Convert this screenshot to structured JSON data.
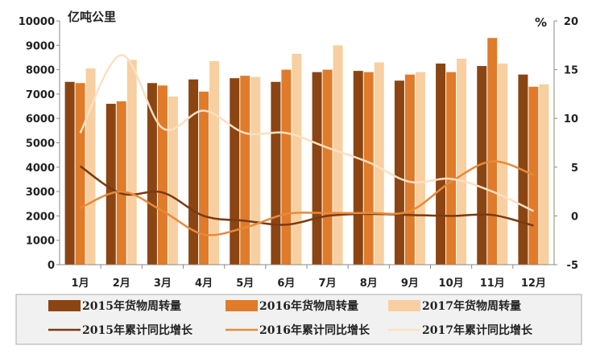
{
  "chart_data": {
    "type": "bar",
    "categories": [
      "1月",
      "2月",
      "3月",
      "4月",
      "5月",
      "6月",
      "7月",
      "8月",
      "9月",
      "10月",
      "11月",
      "12月"
    ],
    "left_axis": {
      "unit": "亿吨公里",
      "ylim": [
        0,
        10000
      ],
      "ticks": [
        "0",
        "1000",
        "2000",
        "3000",
        "4000",
        "5000",
        "6000",
        "7000",
        "8000",
        "9000",
        "10000"
      ]
    },
    "right_axis": {
      "unit": "%",
      "ylim": [
        -5,
        20
      ],
      "ticks": [
        "-5",
        "0",
        "5",
        "10",
        "15",
        "20"
      ]
    },
    "series": [
      {
        "name": "2015年货物周转量",
        "kind": "bar",
        "axis": "left",
        "color": "#8b4513",
        "values": [
          7500,
          6600,
          7450,
          7600,
          7650,
          7500,
          7900,
          7950,
          7550,
          8250,
          8150,
          7800
        ]
      },
      {
        "name": "2016年货物周转量",
        "kind": "bar",
        "axis": "left",
        "color": "#e07b2a",
        "values": [
          7450,
          6700,
          7350,
          7100,
          7750,
          8000,
          8000,
          7900,
          7800,
          7900,
          9300,
          7300
        ]
      },
      {
        "name": "2017年货物周转量",
        "kind": "bar",
        "axis": "left",
        "color": "#f8cfa0",
        "values": [
          8050,
          8400,
          6900,
          8350,
          7700,
          8650,
          9000,
          8300,
          7900,
          8450,
          8250,
          7400
        ]
      },
      {
        "name": "2015年累计同比增长",
        "kind": "line",
        "axis": "right",
        "color": "#7a3a10",
        "values": [
          5.1,
          2.3,
          2.4,
          0.0,
          -0.5,
          -0.9,
          0.0,
          0.2,
          0.1,
          0.0,
          0.1,
          -1.0
        ]
      },
      {
        "name": "2016年累计同比增长",
        "kind": "line",
        "axis": "right",
        "color": "#e68a3c",
        "values": [
          0.8,
          2.5,
          0.5,
          -1.9,
          -1.2,
          0.2,
          0.3,
          0.3,
          0.5,
          3.5,
          5.6,
          4.2
        ]
      },
      {
        "name": "2017年累计同比增长",
        "kind": "line",
        "axis": "right",
        "color": "#fbe0c2",
        "values": [
          8.5,
          16.5,
          9.0,
          10.8,
          8.5,
          8.5,
          7.0,
          5.5,
          3.5,
          3.8,
          2.5,
          0.5
        ]
      }
    ]
  }
}
